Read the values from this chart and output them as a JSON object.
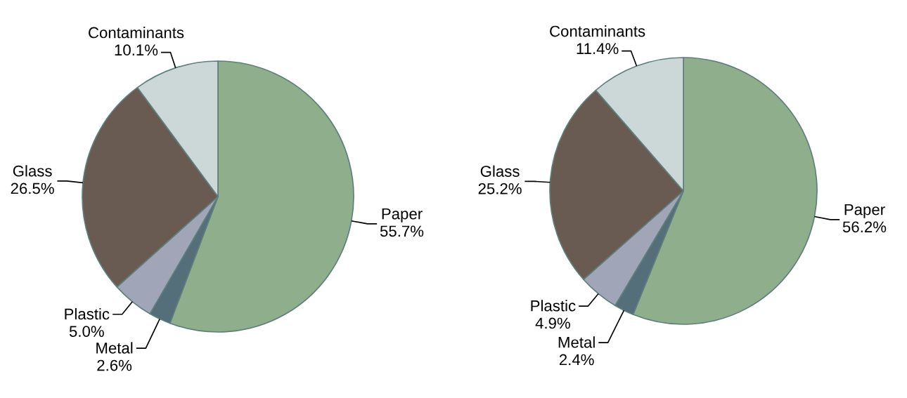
{
  "chart_data": [
    {
      "type": "pie",
      "categories": [
        "Paper",
        "Metal",
        "Plastic",
        "Glass",
        "Contaminants"
      ],
      "values": [
        55.7,
        2.6,
        5.0,
        26.5,
        10.1
      ],
      "value_labels": [
        "55.7%",
        "2.6%",
        "5.0%",
        "26.5%",
        "10.1%"
      ],
      "colors": [
        "#8fae8b",
        "#546e7a",
        "#a0a5b8",
        "#695b52",
        "#cbd8d7"
      ]
    },
    {
      "type": "pie",
      "categories": [
        "Paper",
        "Metal",
        "Plastic",
        "Glass",
        "Contaminants"
      ],
      "values": [
        56.2,
        2.4,
        4.9,
        25.2,
        11.4
      ],
      "value_labels": [
        "56.2%",
        "2.4%",
        "4.9%",
        "25.2%",
        "11.4%"
      ],
      "colors": [
        "#8fae8b",
        "#546e7a",
        "#a0a5b8",
        "#695b52",
        "#cbd8d7"
      ]
    }
  ]
}
